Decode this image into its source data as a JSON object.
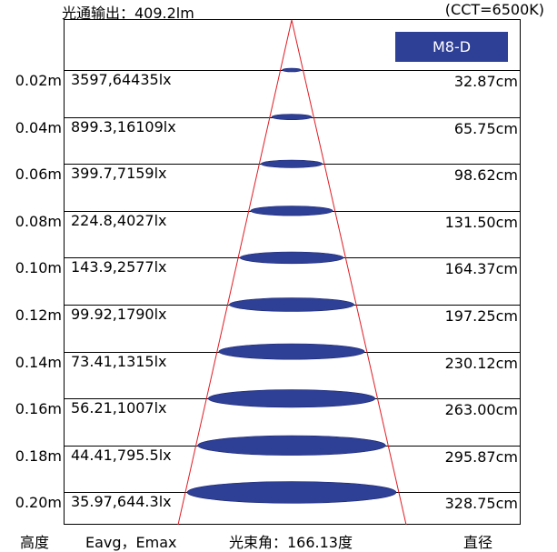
{
  "header": {
    "flux": "光通输出：409.2lm",
    "cct": "(CCT=6500K)",
    "model": "M8-D"
  },
  "rows": [
    {
      "height": "0.02m",
      "lux": "3597,64435lx",
      "diameter": "32.87cm"
    },
    {
      "height": "0.04m",
      "lux": "899.3,16109lx",
      "diameter": "65.75cm"
    },
    {
      "height": "0.06m",
      "lux": "399.7,7159lx",
      "diameter": "98.62cm"
    },
    {
      "height": "0.08m",
      "lux": "224.8,4027lx",
      "diameter": "131.50cm"
    },
    {
      "height": "0.10m",
      "lux": "143.9,2577lx",
      "diameter": "164.37cm"
    },
    {
      "height": "0.12m",
      "lux": "99.92,1790lx",
      "diameter": "197.25cm"
    },
    {
      "height": "0.14m",
      "lux": "73.41,1315lx",
      "diameter": "230.12cm"
    },
    {
      "height": "0.16m",
      "lux": "56.21,1007lx",
      "diameter": "263.00cm"
    },
    {
      "height": "0.18m",
      "lux": "44.41,795.5lx",
      "diameter": "295.87cm"
    },
    {
      "height": "0.20m",
      "lux": "35.97,644.3lx",
      "diameter": "328.75cm"
    }
  ],
  "footer": {
    "height_label": "高度",
    "eavg_label": "Eavg，Emax",
    "beam_angle": "光束角：166.13度",
    "diameter_label": "直径"
  },
  "colors": {
    "ellipse_fill": "#2e3f96",
    "beam_line": "#e01c24",
    "model_bg": "#2e3f96"
  }
}
